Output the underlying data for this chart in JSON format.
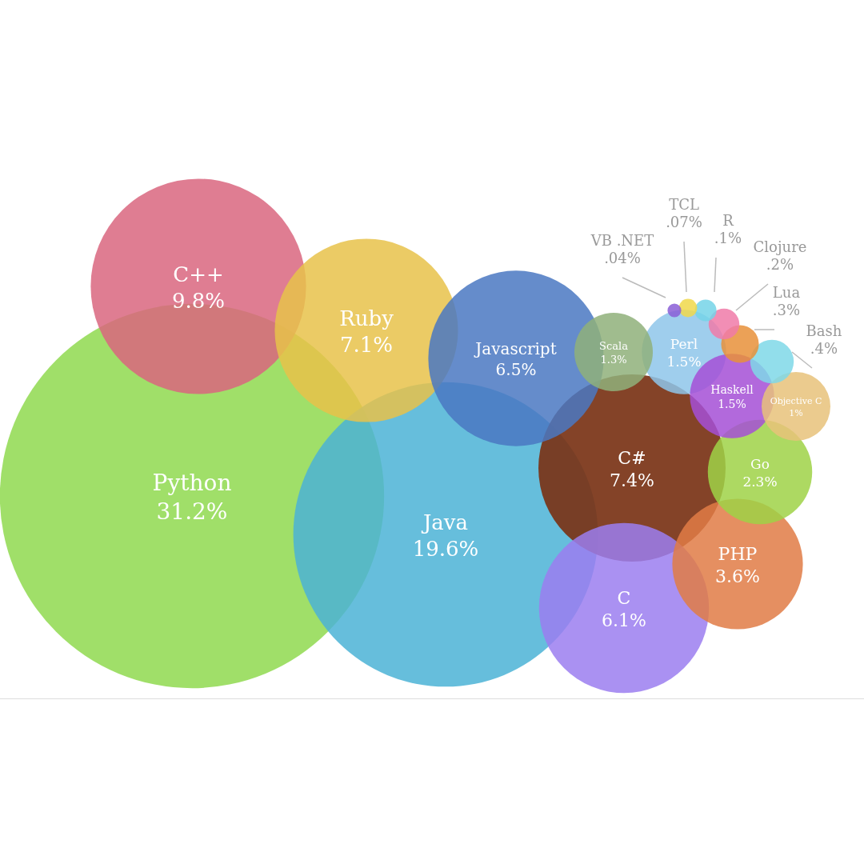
{
  "chart_data": {
    "type": "other",
    "categories": [
      "Python",
      "Java",
      "C++",
      "C#",
      "Ruby",
      "Javascript",
      "C",
      "PHP",
      "Go",
      "Perl",
      "Haskell",
      "Scala",
      "Objective C",
      "Bash",
      "Lua",
      "Clojure",
      "R",
      "TCL",
      "VB .NET"
    ],
    "values": [
      31.2,
      19.6,
      9.8,
      7.4,
      7.1,
      6.5,
      6.1,
      3.6,
      2.3,
      1.5,
      1.5,
      1.3,
      1,
      0.4,
      0.3,
      0.2,
      0.1,
      0.07,
      0.04
    ],
    "value_labels": [
      "31.2%",
      "19.6%",
      "9.8%",
      "7.4%",
      "7.1%",
      "6.5%",
      "6.1%",
      "3.6%",
      "2.3%",
      "1.5%",
      "1.5%",
      "1.3%",
      "1%",
      ".4%",
      ".3%",
      ".2%",
      ".1%",
      ".07%",
      ".04%"
    ],
    "colors": [
      "#8fd94f",
      "#4bb3d6",
      "#d9667f",
      "#7a3316",
      "#e8c24a",
      "#4a78c2",
      "#9b7ef0",
      "#e07b45",
      "#9fd246",
      "#8ec5ea",
      "#a54fd6",
      "#8fb07a",
      "#e8c27a",
      "#7fd8e8",
      "#e8913a",
      "#f07aa8",
      "#74d4e8",
      "#f0d84a",
      "#8a5ed6"
    ]
  }
}
